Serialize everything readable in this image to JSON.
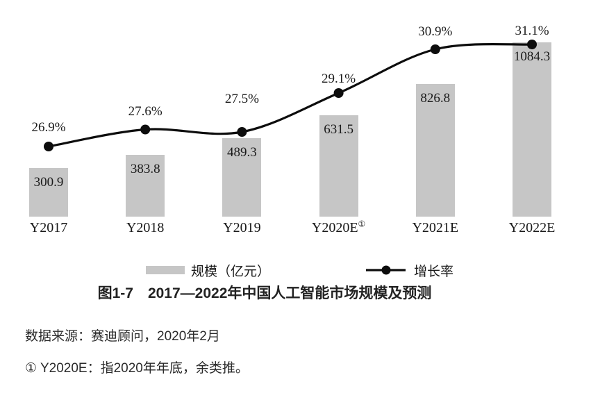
{
  "figure": {
    "title": "图1-7　2017—2022年中国人工智能市场规模及预测",
    "source_note": "数据来源：赛迪顾问，2020年2月",
    "footnote": "① Y2020E：指2020年年底，余类推。"
  },
  "legend": {
    "bar_label": "规模（亿元）",
    "line_label": "增长率"
  },
  "colors": {
    "bar_fill": "#c6c6c6",
    "line_color": "#0d0d0d",
    "text_color": "#1a1a1a",
    "background": "#ffffff"
  },
  "chart_data": {
    "type": "bar",
    "categories": [
      "Y2017",
      "Y2018",
      "Y2019",
      "Y2020E",
      "Y2021E",
      "Y2022E"
    ],
    "category_superscripts": [
      "",
      "",
      "",
      "①",
      "",
      ""
    ],
    "series": [
      {
        "name": "规模（亿元）",
        "type": "bar",
        "unit": "亿元",
        "values": [
          300.9,
          383.8,
          489.3,
          631.5,
          826.8,
          1084.3
        ]
      },
      {
        "name": "增长率",
        "type": "line",
        "unit": "%",
        "values": [
          26.9,
          27.6,
          27.5,
          29.1,
          30.9,
          31.1
        ]
      }
    ],
    "title": "图1-7　2017—2022年中国人工智能市场规模及预测",
    "xlabel": "",
    "ylabel": "",
    "legend_position": "bottom",
    "grid": false,
    "axes_visible": false,
    "data_labels": true
  }
}
